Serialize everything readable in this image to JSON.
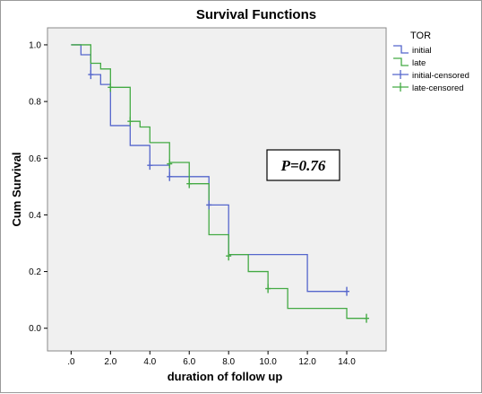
{
  "chart_data": {
    "type": "line",
    "title": "Survival Functions",
    "xlabel": "duration of follow up",
    "ylabel": "Cum Survival",
    "xlim": [
      -1.2,
      16
    ],
    "ylim": [
      -0.08,
      1.06
    ],
    "xticks": [
      0,
      2,
      4,
      6,
      8,
      10,
      12,
      14
    ],
    "xtick_labels": [
      ".0",
      "2.0",
      "4.0",
      "6.0",
      "8.0",
      "10.0",
      "12.0",
      "14.0"
    ],
    "yticks": [
      0,
      0.2,
      0.4,
      0.6,
      0.8,
      1.0
    ],
    "ytick_labels": [
      "0.0",
      "0.2",
      "0.4",
      "0.6",
      "0.8",
      "1.0"
    ],
    "grid": false,
    "legend": {
      "title": "TOR",
      "placement": "top-right",
      "entries": [
        "initial",
        "late",
        "initial-censored",
        "late-censored"
      ]
    },
    "annotation": "P=0.76",
    "series": [
      {
        "name": "initial",
        "color": "#5566cc",
        "steps": [
          [
            0,
            1.0
          ],
          [
            0.5,
            0.965
          ],
          [
            1,
            0.895
          ],
          [
            1.5,
            0.86
          ],
          [
            2,
            0.715
          ],
          [
            3,
            0.645
          ],
          [
            4,
            0.575
          ],
          [
            5,
            0.535
          ],
          [
            7,
            0.435
          ],
          [
            8,
            0.26
          ],
          [
            12,
            0.13
          ],
          [
            14,
            0.13
          ]
        ],
        "censored": [
          [
            1,
            0.895
          ],
          [
            4,
            0.575
          ],
          [
            5,
            0.535
          ],
          [
            7,
            0.435
          ],
          [
            14,
            0.13
          ]
        ]
      },
      {
        "name": "late",
        "color": "#44aa44",
        "steps": [
          [
            0,
            1.0
          ],
          [
            1,
            0.935
          ],
          [
            1.5,
            0.915
          ],
          [
            2,
            0.85
          ],
          [
            3,
            0.73
          ],
          [
            3.5,
            0.71
          ],
          [
            4,
            0.655
          ],
          [
            5,
            0.585
          ],
          [
            6,
            0.51
          ],
          [
            7,
            0.33
          ],
          [
            8,
            0.26
          ],
          [
            9,
            0.2
          ],
          [
            10,
            0.14
          ],
          [
            11,
            0.07
          ],
          [
            14,
            0.035
          ],
          [
            15,
            0.035
          ]
        ],
        "censored": [
          [
            2,
            0.85
          ],
          [
            3,
            0.73
          ],
          [
            5,
            0.58
          ],
          [
            6,
            0.51
          ],
          [
            8,
            0.255
          ],
          [
            10,
            0.14
          ],
          [
            15,
            0.035
          ]
        ]
      }
    ]
  }
}
